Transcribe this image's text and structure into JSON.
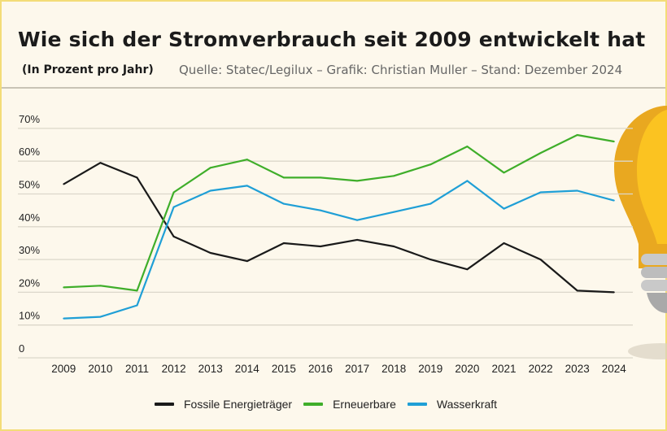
{
  "header": {
    "title": "Wie sich der Stromverbrauch seit 2009 entwickelt hat",
    "subtitle": "(In Prozent pro Jahr)",
    "source": "Quelle: Statec/Legilux – Grafik: Christian Muller – Stand: Dezember 2024"
  },
  "chart_data": {
    "type": "line",
    "title": "Wie sich der Stromverbrauch seit 2009 entwickelt hat",
    "ylabel": "",
    "xlabel": "",
    "ylim": [
      0,
      70
    ],
    "grid": true,
    "legend_position": "bottom",
    "y_ticks": [
      "0",
      "10%",
      "20%",
      "30%",
      "40%",
      "50%",
      "60%",
      "70%"
    ],
    "y_tick_values": [
      0,
      10,
      20,
      30,
      40,
      50,
      60,
      70
    ],
    "categories": [
      "2009",
      "2010",
      "2011",
      "2012",
      "2013",
      "2014",
      "2015",
      "2016",
      "2017",
      "2018",
      "2019",
      "2020",
      "2021",
      "2022",
      "2023",
      "2024"
    ],
    "series": [
      {
        "name": "Fossile Energieträger",
        "color": "#1a1a1a",
        "values": [
          53,
          59.5,
          55,
          37,
          32,
          29.5,
          35,
          34,
          36,
          34,
          30,
          27,
          35,
          30,
          20.5,
          20
        ]
      },
      {
        "name": "Erneuerbare",
        "color": "#3fae2a",
        "values": [
          21.5,
          22,
          20.5,
          50.5,
          58,
          60.5,
          55,
          55,
          54,
          55.5,
          59,
          64.5,
          56.5,
          62.5,
          68,
          66
        ]
      },
      {
        "name": "Wasserkraft",
        "color": "#1f9fd6",
        "values": [
          12,
          12.5,
          16,
          46,
          51,
          52.5,
          47,
          45,
          42,
          44.5,
          47,
          54,
          45.5,
          50.5,
          51,
          48
        ]
      }
    ]
  }
}
